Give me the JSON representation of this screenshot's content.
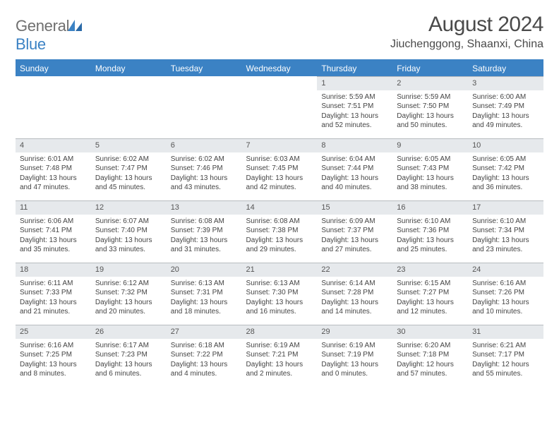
{
  "brand": {
    "part1": "General",
    "part2": "Blue"
  },
  "title": "August 2024",
  "location": "Jiuchenggong, Shaanxi, China",
  "colors": {
    "header_bg": "#3b82c4",
    "header_text": "#ffffff",
    "daynum_bg": "#e6e9ec",
    "text": "#444444",
    "brand_gray": "#6f6f6f",
    "brand_blue": "#3b82c4"
  },
  "day_headers": [
    "Sunday",
    "Monday",
    "Tuesday",
    "Wednesday",
    "Thursday",
    "Friday",
    "Saturday"
  ],
  "weeks": [
    [
      null,
      null,
      null,
      null,
      {
        "n": "1",
        "sunrise": "Sunrise: 5:59 AM",
        "sunset": "Sunset: 7:51 PM",
        "daylight": "Daylight: 13 hours and 52 minutes."
      },
      {
        "n": "2",
        "sunrise": "Sunrise: 5:59 AM",
        "sunset": "Sunset: 7:50 PM",
        "daylight": "Daylight: 13 hours and 50 minutes."
      },
      {
        "n": "3",
        "sunrise": "Sunrise: 6:00 AM",
        "sunset": "Sunset: 7:49 PM",
        "daylight": "Daylight: 13 hours and 49 minutes."
      }
    ],
    [
      {
        "n": "4",
        "sunrise": "Sunrise: 6:01 AM",
        "sunset": "Sunset: 7:48 PM",
        "daylight": "Daylight: 13 hours and 47 minutes."
      },
      {
        "n": "5",
        "sunrise": "Sunrise: 6:02 AM",
        "sunset": "Sunset: 7:47 PM",
        "daylight": "Daylight: 13 hours and 45 minutes."
      },
      {
        "n": "6",
        "sunrise": "Sunrise: 6:02 AM",
        "sunset": "Sunset: 7:46 PM",
        "daylight": "Daylight: 13 hours and 43 minutes."
      },
      {
        "n": "7",
        "sunrise": "Sunrise: 6:03 AM",
        "sunset": "Sunset: 7:45 PM",
        "daylight": "Daylight: 13 hours and 42 minutes."
      },
      {
        "n": "8",
        "sunrise": "Sunrise: 6:04 AM",
        "sunset": "Sunset: 7:44 PM",
        "daylight": "Daylight: 13 hours and 40 minutes."
      },
      {
        "n": "9",
        "sunrise": "Sunrise: 6:05 AM",
        "sunset": "Sunset: 7:43 PM",
        "daylight": "Daylight: 13 hours and 38 minutes."
      },
      {
        "n": "10",
        "sunrise": "Sunrise: 6:05 AM",
        "sunset": "Sunset: 7:42 PM",
        "daylight": "Daylight: 13 hours and 36 minutes."
      }
    ],
    [
      {
        "n": "11",
        "sunrise": "Sunrise: 6:06 AM",
        "sunset": "Sunset: 7:41 PM",
        "daylight": "Daylight: 13 hours and 35 minutes."
      },
      {
        "n": "12",
        "sunrise": "Sunrise: 6:07 AM",
        "sunset": "Sunset: 7:40 PM",
        "daylight": "Daylight: 13 hours and 33 minutes."
      },
      {
        "n": "13",
        "sunrise": "Sunrise: 6:08 AM",
        "sunset": "Sunset: 7:39 PM",
        "daylight": "Daylight: 13 hours and 31 minutes."
      },
      {
        "n": "14",
        "sunrise": "Sunrise: 6:08 AM",
        "sunset": "Sunset: 7:38 PM",
        "daylight": "Daylight: 13 hours and 29 minutes."
      },
      {
        "n": "15",
        "sunrise": "Sunrise: 6:09 AM",
        "sunset": "Sunset: 7:37 PM",
        "daylight": "Daylight: 13 hours and 27 minutes."
      },
      {
        "n": "16",
        "sunrise": "Sunrise: 6:10 AM",
        "sunset": "Sunset: 7:36 PM",
        "daylight": "Daylight: 13 hours and 25 minutes."
      },
      {
        "n": "17",
        "sunrise": "Sunrise: 6:10 AM",
        "sunset": "Sunset: 7:34 PM",
        "daylight": "Daylight: 13 hours and 23 minutes."
      }
    ],
    [
      {
        "n": "18",
        "sunrise": "Sunrise: 6:11 AM",
        "sunset": "Sunset: 7:33 PM",
        "daylight": "Daylight: 13 hours and 21 minutes."
      },
      {
        "n": "19",
        "sunrise": "Sunrise: 6:12 AM",
        "sunset": "Sunset: 7:32 PM",
        "daylight": "Daylight: 13 hours and 20 minutes."
      },
      {
        "n": "20",
        "sunrise": "Sunrise: 6:13 AM",
        "sunset": "Sunset: 7:31 PM",
        "daylight": "Daylight: 13 hours and 18 minutes."
      },
      {
        "n": "21",
        "sunrise": "Sunrise: 6:13 AM",
        "sunset": "Sunset: 7:30 PM",
        "daylight": "Daylight: 13 hours and 16 minutes."
      },
      {
        "n": "22",
        "sunrise": "Sunrise: 6:14 AM",
        "sunset": "Sunset: 7:28 PM",
        "daylight": "Daylight: 13 hours and 14 minutes."
      },
      {
        "n": "23",
        "sunrise": "Sunrise: 6:15 AM",
        "sunset": "Sunset: 7:27 PM",
        "daylight": "Daylight: 13 hours and 12 minutes."
      },
      {
        "n": "24",
        "sunrise": "Sunrise: 6:16 AM",
        "sunset": "Sunset: 7:26 PM",
        "daylight": "Daylight: 13 hours and 10 minutes."
      }
    ],
    [
      {
        "n": "25",
        "sunrise": "Sunrise: 6:16 AM",
        "sunset": "Sunset: 7:25 PM",
        "daylight": "Daylight: 13 hours and 8 minutes."
      },
      {
        "n": "26",
        "sunrise": "Sunrise: 6:17 AM",
        "sunset": "Sunset: 7:23 PM",
        "daylight": "Daylight: 13 hours and 6 minutes."
      },
      {
        "n": "27",
        "sunrise": "Sunrise: 6:18 AM",
        "sunset": "Sunset: 7:22 PM",
        "daylight": "Daylight: 13 hours and 4 minutes."
      },
      {
        "n": "28",
        "sunrise": "Sunrise: 6:19 AM",
        "sunset": "Sunset: 7:21 PM",
        "daylight": "Daylight: 13 hours and 2 minutes."
      },
      {
        "n": "29",
        "sunrise": "Sunrise: 6:19 AM",
        "sunset": "Sunset: 7:19 PM",
        "daylight": "Daylight: 13 hours and 0 minutes."
      },
      {
        "n": "30",
        "sunrise": "Sunrise: 6:20 AM",
        "sunset": "Sunset: 7:18 PM",
        "daylight": "Daylight: 12 hours and 57 minutes."
      },
      {
        "n": "31",
        "sunrise": "Sunrise: 6:21 AM",
        "sunset": "Sunset: 7:17 PM",
        "daylight": "Daylight: 12 hours and 55 minutes."
      }
    ]
  ]
}
